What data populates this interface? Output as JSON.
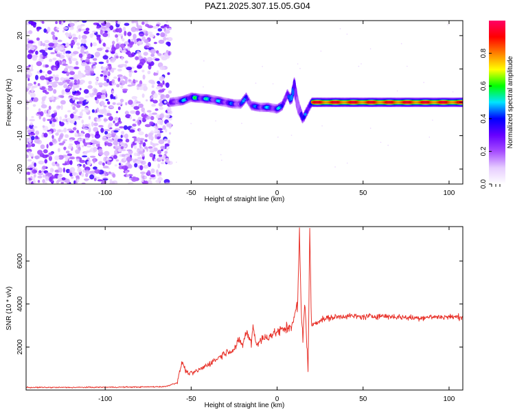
{
  "figure_title": "PAZ1.2025.307.15.05.G04",
  "chart_data": [
    {
      "type": "heatmap",
      "title": "PAZ1.2025.307.15.05.G04",
      "xlabel": "Height of straight line (km)",
      "ylabel": "Frequency (Hz)",
      "xlim": [
        -146,
        108
      ],
      "ylim": [
        -24.5,
        24.5
      ],
      "xticks": [
        -100,
        -50,
        0,
        50,
        100
      ],
      "yticks": [
        -20,
        -10,
        0,
        10,
        20
      ],
      "xtick_labels": [
        "-100",
        "-50",
        "0",
        "50",
        "100"
      ],
      "ytick_labels": [
        "-20",
        "-10",
        "0",
        "10",
        "20"
      ],
      "colorbar": {
        "label": "Normalized spectral amplitude",
        "range": [
          0,
          1
        ],
        "ticks": [
          0.0,
          0.2,
          0.4,
          0.6,
          0.8
        ],
        "tick_labels": [
          "0.0",
          "0.2",
          "0.4",
          "0.6",
          "0.8"
        ],
        "colormap": [
          "#ffffff",
          "#e6ccff",
          "#a64dff",
          "#6600ff",
          "#0000ff",
          "#00e5ff",
          "#00ff00",
          "#ffff00",
          "#ff8000",
          "#ff0000",
          "#ff0066"
        ]
      },
      "noise_region_x": [
        -146,
        -62
      ],
      "ridge": {
        "x": [
          -62,
          -55,
          -50,
          -45,
          -40,
          -35,
          -30,
          -25,
          -21,
          -18,
          -15,
          -10,
          -5,
          0,
          3,
          6,
          8,
          10,
          12,
          15,
          20,
          30,
          40,
          50,
          60,
          70,
          80,
          90,
          100,
          108
        ],
        "frequency": [
          0,
          0.5,
          1.5,
          1.2,
          1.0,
          0.5,
          0.0,
          -0.5,
          -0.5,
          1.5,
          -1.0,
          -1.5,
          -1.5,
          -2.0,
          -1.0,
          2.5,
          0.5,
          5.0,
          -1.0,
          -5.0,
          0,
          0,
          0,
          0,
          0,
          0,
          0,
          0,
          0,
          0
        ],
        "amplitude": [
          0.3,
          0.5,
          0.65,
          0.6,
          0.55,
          0.5,
          0.5,
          0.45,
          0.4,
          0.55,
          0.4,
          0.5,
          0.5,
          0.5,
          0.55,
          0.6,
          0.45,
          0.5,
          0.45,
          0.35,
          0.95,
          0.95,
          0.95,
          0.95,
          0.95,
          0.95,
          0.95,
          0.95,
          0.95,
          0.95
        ]
      }
    },
    {
      "type": "line",
      "xlabel": "Height of straight line (km)",
      "ylabel": "SNR (10 * v/v)",
      "xlim": [
        -146,
        108
      ],
      "ylim": [
        0,
        7600
      ],
      "xticks": [
        -100,
        -50,
        0,
        50,
        100
      ],
      "yticks": [
        2000,
        4000,
        6000
      ],
      "xtick_labels": [
        "-100",
        "-50",
        "0",
        "50",
        "100"
      ],
      "ytick_labels": [
        "2000",
        "4000",
        "6000"
      ],
      "series": [
        {
          "name": "SNR",
          "color": "#e8322a",
          "x": [
            -146,
            -120,
            -100,
            -80,
            -65,
            -58,
            -56,
            -55,
            -53,
            -50,
            -45,
            -40,
            -35,
            -30,
            -25,
            -22,
            -20,
            -18,
            -15,
            -14,
            -12,
            -10,
            -5,
            0,
            5,
            8,
            10,
            11,
            12,
            13,
            14,
            15,
            16,
            17,
            18,
            19,
            20,
            25,
            30,
            40,
            50,
            60,
            70,
            80,
            90,
            100,
            108
          ],
          "values": [
            120,
            120,
            130,
            140,
            160,
            350,
            1100,
            1300,
            850,
            750,
            950,
            1200,
            1450,
            1750,
            1900,
            2300,
            2100,
            2700,
            2200,
            3000,
            2100,
            2300,
            2500,
            2700,
            2850,
            3000,
            3300,
            3800,
            4000,
            7400,
            3600,
            2400,
            4200,
            2700,
            900,
            7300,
            3000,
            3250,
            3350,
            3450,
            3400,
            3450,
            3400,
            3350,
            3400,
            3400,
            3400
          ]
        }
      ]
    }
  ]
}
